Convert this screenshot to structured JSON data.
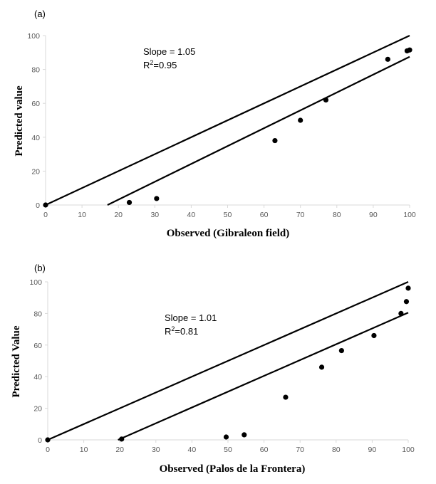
{
  "chart_data": [
    {
      "type": "scatter",
      "panel_label": "(a)",
      "xlabel": "Observed (Gibraleon  field)",
      "ylabel": "Predicted value",
      "xlim": [
        0,
        100
      ],
      "ylim": [
        0,
        100
      ],
      "xticks": [
        "0",
        "10",
        "20",
        "30",
        "40",
        "50",
        "60",
        "70",
        "80",
        "90",
        "100"
      ],
      "yticks": [
        "0",
        "20",
        "40",
        "60",
        "80",
        "100"
      ],
      "points": [
        [
          0,
          0
        ],
        [
          23,
          1.5
        ],
        [
          30.5,
          3.8
        ],
        [
          63,
          38
        ],
        [
          70,
          50
        ],
        [
          77,
          62
        ],
        [
          94,
          86
        ],
        [
          99.3,
          91
        ],
        [
          100,
          91.5
        ]
      ],
      "lines": [
        {
          "name": "1:1 line",
          "x": [
            0,
            100
          ],
          "y": [
            0,
            100
          ]
        },
        {
          "name": "regression",
          "x": [
            17,
            100
          ],
          "y": [
            0,
            87.5
          ]
        }
      ],
      "annotations": {
        "slope": "Slope = 1.05",
        "r2_prefix": "R",
        "r2_sup": "2",
        "r2_value": "=0.95"
      }
    },
    {
      "type": "scatter",
      "panel_label": "(b)",
      "xlabel": "Observed (Palos de la Frontera)",
      "ylabel": "Predicted Value",
      "xlim": [
        0,
        100
      ],
      "ylim": [
        0,
        100
      ],
      "xticks": [
        "0",
        "10",
        "20",
        "30",
        "40",
        "50",
        "60",
        "70",
        "80",
        "90",
        "100"
      ],
      "yticks": [
        "0",
        "20",
        "40",
        "60",
        "80",
        "100"
      ],
      "points": [
        [
          0,
          0
        ],
        [
          20.5,
          0.5
        ],
        [
          49.5,
          1.8
        ],
        [
          54.5,
          3.2
        ],
        [
          66,
          27
        ],
        [
          76,
          46
        ],
        [
          81.5,
          56.5
        ],
        [
          90.5,
          66
        ],
        [
          98,
          80
        ],
        [
          99.5,
          87.5
        ],
        [
          100,
          96
        ]
      ],
      "lines": [
        {
          "name": "1:1 line",
          "x": [
            0,
            100
          ],
          "y": [
            0,
            100
          ]
        },
        {
          "name": "regression",
          "x": [
            19.5,
            100
          ],
          "y": [
            0,
            80.5
          ]
        }
      ],
      "annotations": {
        "slope": "Slope = 1.01",
        "r2_prefix": "R",
        "r2_sup": "2",
        "r2_value": "=0.81"
      }
    }
  ]
}
